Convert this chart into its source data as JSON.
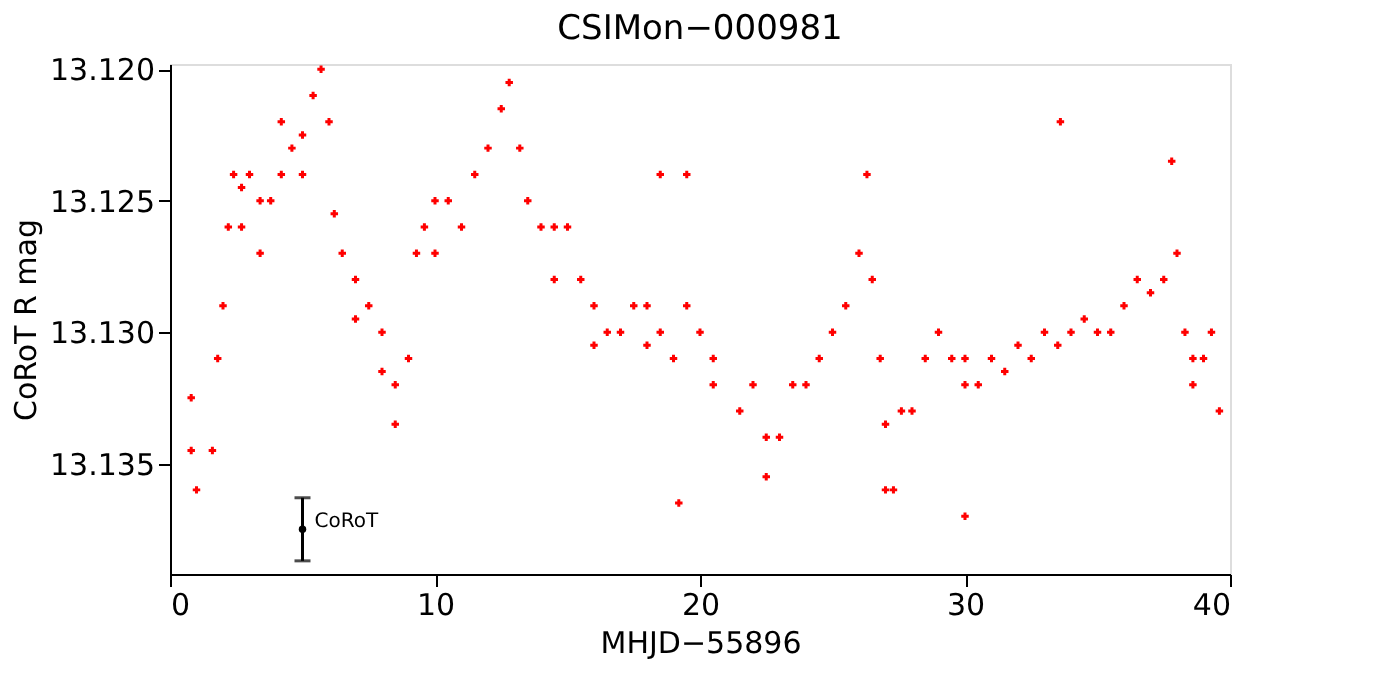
{
  "chart_data": {
    "type": "scatter",
    "title": "CSIMon−000981",
    "xlabel": "MHJD−55896",
    "ylabel": "CoRoT R mag",
    "xlim": [
      0,
      40
    ],
    "xticks": [
      0,
      10,
      20,
      30,
      40
    ],
    "ylim": [
      13.1392,
      13.1198
    ],
    "yticks": [
      {
        "value": 13.12,
        "label": "13.120"
      },
      {
        "value": 13.125,
        "label": "13.125"
      },
      {
        "value": 13.13,
        "label": "13.130"
      },
      {
        "value": 13.135,
        "label": "13.135"
      }
    ],
    "grid": false,
    "marker": "cross",
    "series": [
      {
        "color": "#ff0000",
        "x": [
          0.8,
          0.8,
          1.0,
          1.6,
          1.8,
          2.0,
          2.2,
          2.4,
          2.7,
          2.7,
          3.0,
          3.4,
          3.4,
          3.8,
          4.2,
          4.2,
          4.6,
          5.0,
          5.0,
          5.4,
          5.7,
          6.0,
          6.2,
          6.5,
          7.0,
          7.0,
          7.5,
          8.0,
          8.0,
          8.5,
          8.5,
          9.0,
          9.3,
          9.6,
          10.0,
          10.0,
          10.5,
          11.0,
          11.5,
          12.0,
          12.5,
          12.8,
          13.2,
          13.5,
          14.0,
          14.5,
          14.5,
          15.0,
          15.5,
          16.0,
          16.0,
          16.5,
          17.0,
          17.5,
          18.0,
          18.0,
          18.5,
          19.0,
          19.5,
          20.0,
          20.5,
          20.5,
          21.5,
          22.0,
          22.5,
          22.5,
          23.0,
          23.5,
          24.0,
          24.5,
          25.0,
          25.5,
          26.0,
          26.3,
          26.5,
          26.8,
          27.0,
          27.0,
          27.3,
          27.6,
          28.0,
          28.5,
          29.0,
          29.5,
          30.0,
          30.0,
          30.5,
          31.0,
          31.5,
          32.0,
          32.5,
          33.0,
          33.5,
          34.0,
          34.5,
          35.0,
          35.5,
          36.0,
          36.5,
          37.0,
          37.5,
          38.0,
          38.3,
          38.6,
          38.6,
          39.0,
          39.3,
          39.6,
          19.2,
          30.0,
          33.6,
          37.8,
          19.5,
          18.5
        ],
        "values": [
          13.1345,
          13.1325,
          13.136,
          13.1345,
          13.131,
          13.129,
          13.126,
          13.124,
          13.1245,
          13.126,
          13.124,
          13.125,
          13.127,
          13.125,
          13.122,
          13.124,
          13.123,
          13.1225,
          13.124,
          13.121,
          13.12,
          13.122,
          13.1255,
          13.127,
          13.128,
          13.1295,
          13.129,
          13.13,
          13.1315,
          13.132,
          13.1335,
          13.131,
          13.127,
          13.126,
          13.125,
          13.127,
          13.125,
          13.126,
          13.124,
          13.123,
          13.1215,
          13.1205,
          13.123,
          13.125,
          13.126,
          13.126,
          13.128,
          13.126,
          13.128,
          13.129,
          13.1305,
          13.13,
          13.13,
          13.129,
          13.129,
          13.1305,
          13.13,
          13.131,
          13.129,
          13.13,
          13.131,
          13.132,
          13.133,
          13.132,
          13.134,
          13.1355,
          13.134,
          13.132,
          13.132,
          13.131,
          13.13,
          13.129,
          13.127,
          13.124,
          13.128,
          13.131,
          13.1335,
          13.136,
          13.136,
          13.133,
          13.133,
          13.131,
          13.13,
          13.131,
          13.131,
          13.132,
          13.132,
          13.131,
          13.1315,
          13.1305,
          13.131,
          13.13,
          13.1305,
          13.13,
          13.1295,
          13.13,
          13.13,
          13.129,
          13.128,
          13.1285,
          13.128,
          13.127,
          13.13,
          13.131,
          13.132,
          13.131,
          13.13,
          13.133,
          13.1365,
          13.137,
          13.122,
          13.1235,
          13.124,
          13.124
        ]
      },
      {
        "name": "CoRoT",
        "color": "#000000",
        "marker": "circle",
        "x": [
          5
        ],
        "values": [
          13.1375
        ],
        "errors": [
          0.0012
        ]
      }
    ]
  }
}
